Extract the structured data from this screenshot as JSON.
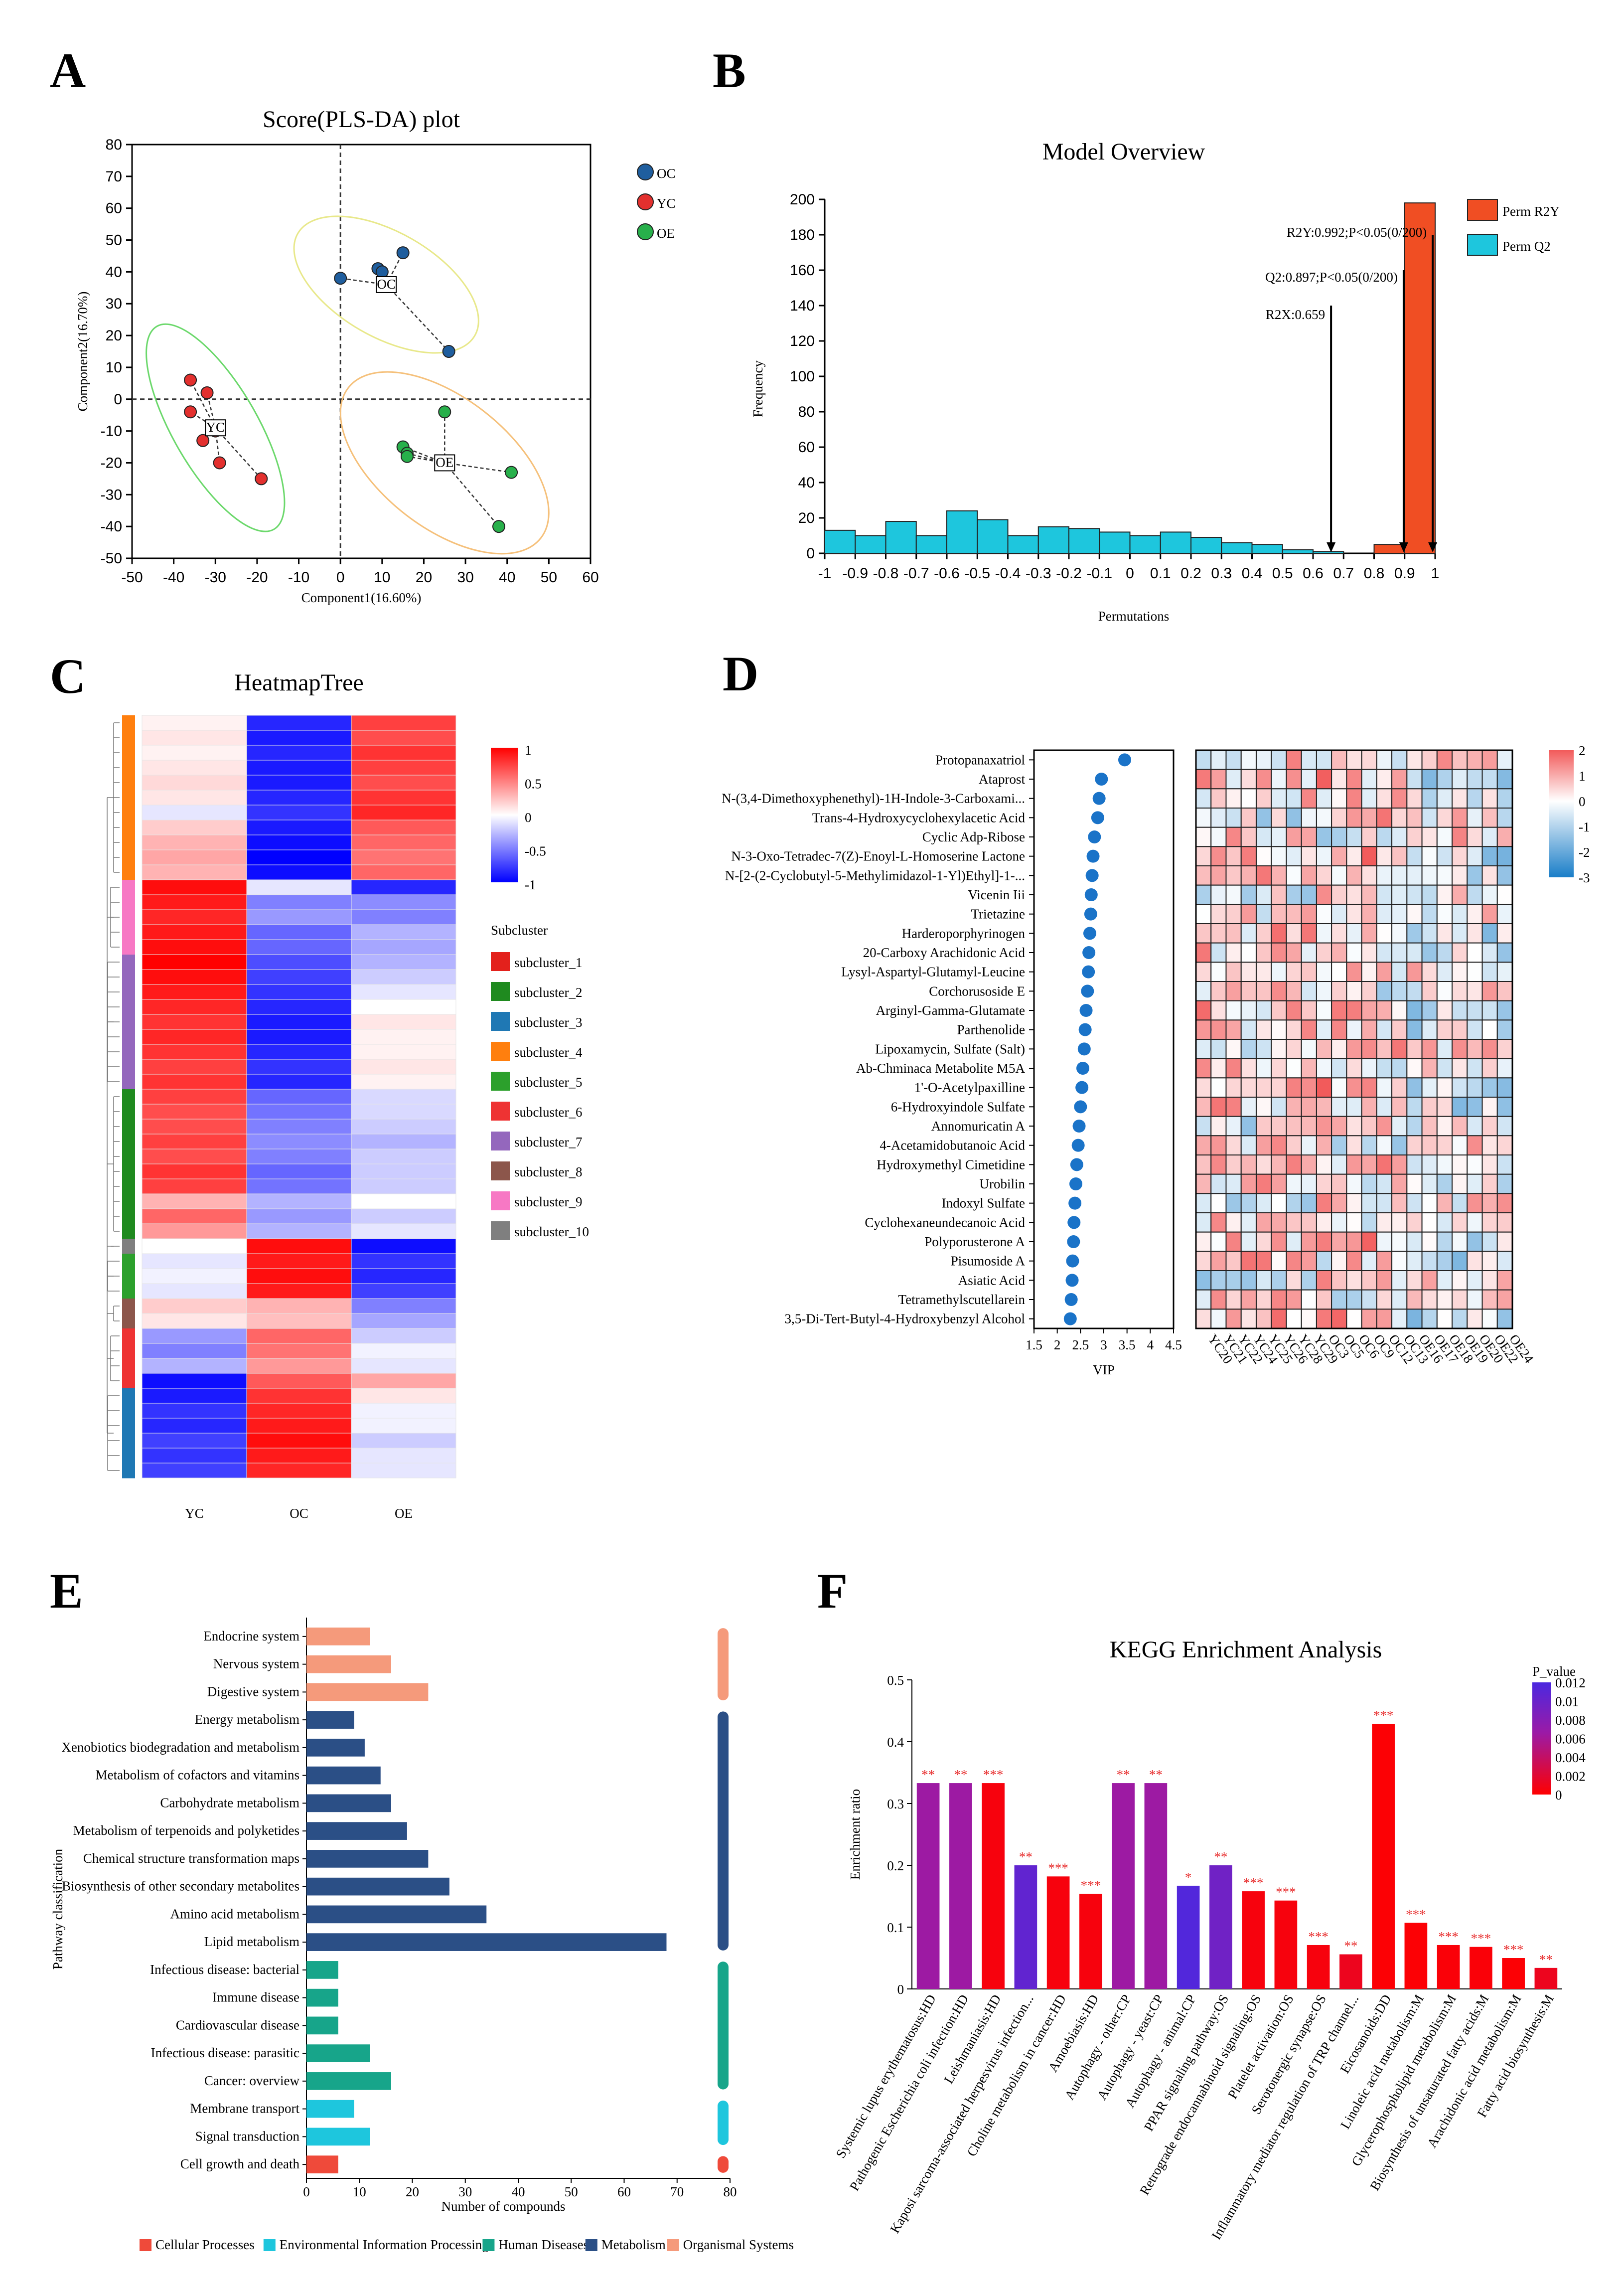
{
  "panels": {
    "a": "A",
    "b": "B",
    "c": "C",
    "d": "D",
    "e": "E",
    "f": "F"
  },
  "chart_data": [
    {
      "id": "A",
      "type": "scatter",
      "title": "Score(PLS-DA) plot",
      "xlabel": "Component1(16.60%)",
      "ylabel": "Component2(16.70%)",
      "xlim": [
        -50,
        60
      ],
      "ylim": [
        -50,
        80
      ],
      "xticks": [
        -50,
        -40,
        -30,
        -20,
        -10,
        0,
        10,
        20,
        30,
        40,
        50,
        60
      ],
      "yticks": [
        -50,
        -40,
        -30,
        -20,
        -10,
        0,
        10,
        20,
        30,
        40,
        50,
        60,
        70,
        80
      ],
      "legend": [
        "OC",
        "YC",
        "OE"
      ],
      "colors": {
        "OC": "#1f5e9e",
        "YC": "#e3302e",
        "OE": "#28b04b",
        "OC_ell": "#e8e88a",
        "YC_ell": "#6bd86b",
        "OE_ell": "#f5c07a"
      },
      "series": [
        {
          "name": "OC",
          "center": [
            11,
            36
          ],
          "points": [
            [
              0,
              38
            ],
            [
              9,
              41
            ],
            [
              10,
              40
            ],
            [
              15,
              46
            ],
            [
              26,
              15
            ]
          ]
        },
        {
          "name": "YC",
          "center": [
            -30,
            -9
          ],
          "points": [
            [
              -36,
              6
            ],
            [
              -36,
              -4
            ],
            [
              -32,
              2
            ],
            [
              -33,
              -13
            ],
            [
              -30,
              -10
            ],
            [
              -29,
              -20
            ],
            [
              -19,
              -25
            ]
          ]
        },
        {
          "name": "OE",
          "center": [
            25,
            -20
          ],
          "points": [
            [
              25,
              -4
            ],
            [
              15,
              -15
            ],
            [
              16,
              -17
            ],
            [
              16,
              -18
            ],
            [
              41,
              -23
            ],
            [
              38,
              -40
            ]
          ]
        }
      ],
      "center_labels": {
        "OC": "OC",
        "YC": "YC",
        "OE": "OE"
      }
    },
    {
      "id": "B",
      "type": "bar",
      "title": "Model Overview",
      "xlabel": "Permutations",
      "ylabel": "Frequency",
      "xlim": [
        -1,
        1
      ],
      "ylim": [
        0,
        200
      ],
      "xtick_labels": [
        "-1",
        "-0.9",
        "-0.8",
        "-0.7",
        "-0.6",
        "-0.5",
        "-0.4",
        "-0.3",
        "-0.2",
        "-0.1",
        "0",
        "0.1",
        "0.2",
        "0.3",
        "0.4",
        "0.5",
        "0.6",
        "0.7",
        "0.8",
        "0.9",
        "1"
      ],
      "yticks": [
        0,
        20,
        40,
        60,
        80,
        100,
        120,
        140,
        160,
        180,
        200
      ],
      "bin_width": 0.1,
      "series": [
        {
          "name": "Perm Q2",
          "color": "#1ec6dd",
          "bin_starts": [
            -1,
            -0.9,
            -0.8,
            -0.7,
            -0.6,
            -0.5,
            -0.4,
            -0.3,
            -0.2,
            -0.1,
            0,
            0.1,
            0.2,
            0.3,
            0.4,
            0.5,
            0.6
          ],
          "values": [
            13,
            10,
            18,
            10,
            24,
            19,
            10,
            15,
            14,
            12,
            10,
            12,
            9,
            6,
            5,
            2,
            1
          ]
        },
        {
          "name": "Perm R2Y",
          "color": "#f04e23",
          "bin_starts": [
            0.8,
            0.9
          ],
          "values": [
            5,
            198
          ]
        }
      ],
      "annotations": [
        {
          "text": "R2Y:0.992;P<0.05(0/200)",
          "x": 0.992,
          "y": 180
        },
        {
          "text": "Q2:0.897;P<0.05(0/200)",
          "x": 0.897,
          "y": 150
        },
        {
          "text": "R2X:0.659",
          "x": 0.659,
          "y": 138
        }
      ]
    },
    {
      "id": "C",
      "type": "heatmap",
      "title": "HeatmapTree",
      "columns": [
        "YC",
        "OC",
        "OE"
      ],
      "legend_title": "Subcluster",
      "colorbar": {
        "ticks": [
          "1",
          "0.5",
          "0",
          "-0.5",
          "-1"
        ],
        "colors": [
          "#ff0000",
          "#ffffff",
          "#0000ff"
        ]
      },
      "subclusters": [
        {
          "name": "subcluster_1",
          "color": "#e3211c"
        },
        {
          "name": "subcluster_2",
          "color": "#1f8a1f"
        },
        {
          "name": "subcluster_3",
          "color": "#1f78b4"
        },
        {
          "name": "subcluster_4",
          "color": "#ff7f0e"
        },
        {
          "name": "subcluster_5",
          "color": "#2ca02c"
        },
        {
          "name": "subcluster_6",
          "color": "#ee3333"
        },
        {
          "name": "subcluster_7",
          "color": "#9467bd"
        },
        {
          "name": "subcluster_8",
          "color": "#8c564b"
        },
        {
          "name": "subcluster_9",
          "color": "#f778c4"
        },
        {
          "name": "subcluster_10",
          "color": "#7f7f7f"
        }
      ],
      "row_groups": [
        "subcluster_4",
        "subcluster_4",
        "subcluster_4",
        "subcluster_4",
        "subcluster_4",
        "subcluster_4",
        "subcluster_4",
        "subcluster_4",
        "subcluster_4",
        "subcluster_4",
        "subcluster_4",
        "subcluster_9",
        "subcluster_9",
        "subcluster_9",
        "subcluster_9",
        "subcluster_9",
        "subcluster_7",
        "subcluster_7",
        "subcluster_7",
        "subcluster_7",
        "subcluster_7",
        "subcluster_7",
        "subcluster_7",
        "subcluster_7",
        "subcluster_7",
        "subcluster_2",
        "subcluster_2",
        "subcluster_2",
        "subcluster_2",
        "subcluster_2",
        "subcluster_2",
        "subcluster_2",
        "subcluster_2",
        "subcluster_2",
        "subcluster_2",
        "subcluster_10",
        "subcluster_5",
        "subcluster_5",
        "subcluster_5",
        "subcluster_8",
        "subcluster_8",
        "subcluster_6",
        "subcluster_6",
        "subcluster_6",
        "subcluster_6",
        "subcluster_3",
        "subcluster_3",
        "subcluster_3",
        "subcluster_3",
        "subcluster_3",
        "subcluster_3"
      ],
      "values": [
        [
          0.05,
          -0.85,
          0.75
        ],
        [
          0.1,
          -0.9,
          0.7
        ],
        [
          0.05,
          -0.85,
          0.8
        ],
        [
          0.1,
          -0.9,
          0.75
        ],
        [
          0.15,
          -0.9,
          0.7
        ],
        [
          0.1,
          -0.85,
          0.8
        ],
        [
          -0.1,
          -0.8,
          0.85
        ],
        [
          0.2,
          -0.9,
          0.65
        ],
        [
          0.3,
          -0.95,
          0.6
        ],
        [
          0.35,
          -1.0,
          0.55
        ],
        [
          0.3,
          -0.95,
          0.6
        ],
        [
          0.95,
          -0.1,
          -0.85
        ],
        [
          0.9,
          -0.5,
          -0.45
        ],
        [
          0.85,
          -0.4,
          -0.5
        ],
        [
          0.9,
          -0.6,
          -0.3
        ],
        [
          0.95,
          -0.6,
          -0.35
        ],
        [
          1.0,
          -0.7,
          -0.3
        ],
        [
          0.95,
          -0.75,
          -0.2
        ],
        [
          0.9,
          -0.8,
          -0.1
        ],
        [
          0.85,
          -0.85,
          0.0
        ],
        [
          0.8,
          -0.9,
          0.1
        ],
        [
          0.85,
          -0.9,
          0.05
        ],
        [
          0.8,
          -0.85,
          0.05
        ],
        [
          0.75,
          -0.8,
          0.1
        ],
        [
          0.8,
          -0.85,
          0.05
        ],
        [
          0.75,
          -0.6,
          -0.15
        ],
        [
          0.7,
          -0.55,
          -0.15
        ],
        [
          0.7,
          -0.5,
          -0.2
        ],
        [
          0.75,
          -0.45,
          -0.3
        ],
        [
          0.7,
          -0.5,
          -0.2
        ],
        [
          0.8,
          -0.6,
          -0.2
        ],
        [
          0.75,
          -0.55,
          -0.2
        ],
        [
          0.3,
          -0.3,
          0.0
        ],
        [
          0.6,
          -0.4,
          -0.2
        ],
        [
          0.4,
          -0.3,
          -0.1
        ],
        [
          0.0,
          0.95,
          -0.95
        ],
        [
          -0.1,
          0.9,
          -0.8
        ],
        [
          -0.05,
          0.95,
          -0.85
        ],
        [
          -0.1,
          0.9,
          -0.75
        ],
        [
          0.2,
          0.3,
          -0.5
        ],
        [
          0.1,
          0.25,
          -0.35
        ],
        [
          -0.4,
          0.6,
          -0.2
        ],
        [
          -0.5,
          0.55,
          -0.05
        ],
        [
          -0.3,
          0.4,
          -0.1
        ],
        [
          -0.95,
          0.65,
          0.35
        ],
        [
          -0.9,
          0.8,
          0.1
        ],
        [
          -0.8,
          0.85,
          -0.05
        ],
        [
          -0.85,
          0.9,
          -0.05
        ],
        [
          -0.75,
          0.95,
          -0.2
        ],
        [
          -0.8,
          0.9,
          -0.1
        ],
        [
          -0.75,
          0.85,
          -0.1
        ]
      ]
    },
    {
      "id": "D",
      "type": "scatter",
      "xlabel": "VIP",
      "xlim": [
        1.5,
        4.5
      ],
      "xticks": [
        "1.5",
        "2",
        "2.5",
        "3",
        "3.5",
        "4",
        "4.5"
      ],
      "metabolites": [
        "Protopanaxatriol",
        "Ataprost",
        "N-(3,4-Dimethoxyphenethyl)-1H-Indole-3-Carboxami...",
        "Trans-4-Hydroxycyclohexylacetic Acid",
        "Cyclic Adp-Ribose",
        "N-3-Oxo-Tetradec-7(Z)-Enoyl-L-Homoserine Lactone",
        "N-[2-(2-Cyclobutyl-5-Methylimidazol-1-Yl)Ethyl]-1-...",
        "Vicenin Iii",
        "Trietazine",
        "Harderoporphyrinogen",
        "20-Carboxy Arachidonic Acid",
        "Lysyl-Aspartyl-Glutamyl-Leucine",
        "Corchorusoside E",
        "Arginyl-Gamma-Glutamate",
        "Parthenolide",
        "Lipoxamycin, Sulfate (Salt)",
        "Ab-Chminaca Metabolite M5A",
        "1'-O-Acetylpaxilline",
        "6-Hydroxyindole Sulfate",
        "Annomuricatin A",
        "4-Acetamidobutanoic Acid",
        "Hydroxymethyl Cimetidine",
        "Urobilin",
        "Indoxyl Sulfate",
        "Cyclohexaneundecanoic Acid",
        "Polyporusterone A",
        "Pisumoside A",
        "Asiatic Acid",
        "Tetramethylscutellarein",
        "3,5-Di-Tert-Butyl-4-Hydroxybenzyl Alcohol"
      ],
      "vip": [
        3.45,
        2.95,
        2.9,
        2.87,
        2.8,
        2.77,
        2.75,
        2.73,
        2.72,
        2.7,
        2.68,
        2.67,
        2.65,
        2.62,
        2.6,
        2.58,
        2.55,
        2.53,
        2.5,
        2.47,
        2.45,
        2.42,
        2.4,
        2.38,
        2.36,
        2.35,
        2.33,
        2.32,
        2.3,
        2.28
      ],
      "samples": [
        "YC20",
        "YC21",
        "YC22",
        "YC24",
        "YC25",
        "YC26",
        "YC28",
        "YC29",
        "OC3",
        "OC5",
        "OC6",
        "OC9",
        "OC12",
        "OC13",
        "OE16",
        "OE17",
        "OE18",
        "OE19",
        "OE20",
        "OE22",
        "OE24"
      ],
      "colorbar": {
        "ticks": [
          "2",
          "1",
          "0",
          "-1",
          "-2",
          "-3"
        ],
        "colors": [
          "#f25a5a",
          "#ffffff",
          "#1a7ec8"
        ]
      }
    },
    {
      "id": "E",
      "type": "bar",
      "xlabel": "Number of compounds",
      "ylabel": "Pathway classification",
      "xlim": [
        0,
        80
      ],
      "xticks": [
        "0",
        "10",
        "20",
        "30",
        "40",
        "50",
        "60",
        "70",
        "80"
      ],
      "categories": [
        "Endocrine system",
        "Nervous system",
        "Digestive system",
        "Energy metabolism",
        "Xenobiotics biodegradation and metabolism",
        "Metabolism of cofactors and vitamins",
        "Carbohydrate metabolism",
        "Metabolism of terpenoids and polyketides",
        "Chemical structure transformation maps",
        "Biosynthesis of other secondary metabolites",
        "Amino acid metabolism",
        "Lipid metabolism",
        "Infectious disease: bacterial",
        "Immune disease",
        "Cardiovascular disease",
        "Infectious disease: parasitic",
        "Cancer: overview",
        "Membrane transport",
        "Signal transduction",
        "Cell growth and death"
      ],
      "values": [
        12,
        16,
        23,
        9,
        11,
        14,
        16,
        19,
        23,
        27,
        34,
        68,
        6,
        6,
        6,
        12,
        16,
        9,
        12,
        6
      ],
      "groups": [
        4,
        4,
        4,
        3,
        3,
        3,
        3,
        3,
        3,
        3,
        3,
        3,
        2,
        2,
        2,
        2,
        2,
        1,
        1,
        0
      ],
      "legend": [
        {
          "name": "Cellular Processes",
          "color": "#ef4a3a"
        },
        {
          "name": "Environmental Information Processing",
          "color": "#1ec6dd"
        },
        {
          "name": "Human Diseases",
          "color": "#17a58a"
        },
        {
          "name": "Metabolism",
          "color": "#2b4f86"
        },
        {
          "name": "Organismal Systems",
          "color": "#f59a7b"
        }
      ]
    },
    {
      "id": "F",
      "type": "bar",
      "title": "KEGG Enrichment Analysis",
      "ylabel": "Enrichment ratio",
      "ylim": [
        0,
        0.5
      ],
      "yticks": [
        "0",
        "0.1",
        "0.2",
        "0.3",
        "0.4",
        "0.5"
      ],
      "categories": [
        "Systemic lupus erythematosus:HD",
        "Pathogenic Escherichia coli infection:HD",
        "Leishmaniasis:HD",
        "Kaposi sarcoma-associated herpesvirus infection...",
        "Choline metabolism in cancer:HD",
        "Amoebiasis:HD",
        "Autophagy - other:CP",
        "Autophagy - yeast:CP",
        "Autophagy - animal:CP",
        "PPAR signaling pathway:OS",
        "Retrograde endocannabinoid signaling:OS",
        "Platelet activation:OS",
        "Serotonergic synapse:OS",
        "Inflammatory mediator regulation of TRP channel...",
        "Eicosanoids:DD",
        "Linoleic acid metabolism:M",
        "Glycerophospholipid metabolism:M",
        "Biosynthesis of unsaturated fatty acids:M",
        "Arachidonic acid metabolism:M",
        "Fatty acid biosynthesis:M"
      ],
      "values": [
        0.333,
        0.333,
        0.333,
        0.2,
        0.182,
        0.154,
        0.333,
        0.333,
        0.167,
        0.2,
        0.158,
        0.143,
        0.071,
        0.056,
        0.429,
        0.107,
        0.071,
        0.068,
        0.05,
        0.034
      ],
      "p_values": [
        0.0065,
        0.0065,
        0.0005,
        0.0105,
        0.0005,
        0.0005,
        0.0065,
        0.0065,
        0.0115,
        0.0095,
        0.0005,
        0.0005,
        0.0005,
        0.0012,
        0.0002,
        0.0002,
        0.0003,
        0.0003,
        0.0002,
        0.0012
      ],
      "stars": [
        "**",
        "**",
        "***",
        "**",
        "***",
        "***",
        "**",
        "**",
        "*",
        "**",
        "***",
        "***",
        "***",
        "**",
        "***",
        "***",
        "***",
        "***",
        "***",
        "**"
      ],
      "legend_title": "P_value",
      "colorbar": {
        "ticks": [
          "0.012",
          "0.01",
          "0.008",
          "0.006",
          "0.004",
          "0.002",
          "0"
        ],
        "colors": [
          "#ff0000",
          "#9b1aa6",
          "#4b28e0"
        ]
      }
    }
  ]
}
